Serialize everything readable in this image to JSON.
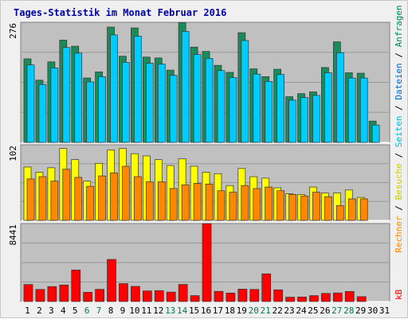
{
  "chart_data": {
    "type": "bar",
    "title": "Tages-Statistik im Monat Februar 2016",
    "x": [
      1,
      2,
      3,
      4,
      5,
      6,
      7,
      8,
      9,
      10,
      11,
      12,
      13,
      14,
      15,
      16,
      17,
      18,
      19,
      20,
      21,
      22,
      23,
      24,
      25,
      26,
      27,
      28,
      29,
      30,
      31
    ],
    "weekend_days": [
      6,
      7,
      13,
      14,
      20,
      21,
      27,
      28
    ],
    "panels": [
      {
        "id": "top",
        "ymax": 276,
        "ytick": "276",
        "series": [
          {
            "name": "Anfragen",
            "color": "#1a8c5a",
            "values": [
              192,
              143,
              185,
              235,
              221,
              148,
              162,
              265,
              198,
              263,
              196,
              194,
              166,
              275,
              219,
              209,
              177,
              161,
              252,
              169,
              151,
              168,
              105,
              112,
              116,
              172,
              231,
              160,
              159,
              49,
              null
            ]
          },
          {
            "name": "Dateien",
            "color": "#00ccff",
            "values": [
              178,
              133,
              171,
              218,
              205,
              139,
              151,
              247,
              184,
              244,
              182,
              180,
              154,
              255,
              202,
              193,
              165,
              149,
              234,
              157,
              140,
              156,
              97,
              103,
              108,
              160,
              206,
              148,
              148,
              40,
              null
            ]
          }
        ]
      },
      {
        "id": "middle",
        "ymax": 102,
        "ytick": "102",
        "series": [
          {
            "name": "Seiten",
            "color": "#ffff00",
            "values": [
              72,
              65,
              71,
              97,
              82,
              53,
              77,
              95,
              97,
              90,
              87,
              82,
              74,
              83,
              73,
              65,
              63,
              47,
              70,
              59,
              57,
              44,
              36,
              35,
              45,
              37,
              37,
              41,
              31,
              null,
              null
            ]
          },
          {
            "name": "Besuche",
            "color": "#ff8800",
            "values": [
              56,
              59,
              53,
              69,
              58,
              46,
              60,
              64,
              73,
              59,
              52,
              52,
              43,
              48,
              50,
              49,
              40,
              38,
              47,
              43,
              45,
              40,
              35,
              33,
              38,
              32,
              20,
              29,
              29,
              null,
              null
            ]
          }
        ]
      },
      {
        "id": "bottom",
        "ymax": 8441,
        "ytick": "8441",
        "series": [
          {
            "name": "kB",
            "color": "#ff0000",
            "values": [
              1840,
              1310,
              1620,
              1790,
              3410,
              1000,
              1320,
              4560,
              1940,
              1640,
              1150,
              1180,
              1020,
              1850,
              640,
              8441,
              1100,
              920,
              1340,
              1310,
              3000,
              1270,
              470,
              490,
              640,
              880,
              930,
              1090,
              530,
              null,
              null
            ]
          }
        ]
      }
    ],
    "right_labels": [
      {
        "text": "kB",
        "color": "#ff0000"
      },
      {
        "text": "Rechner",
        "color": "#ff8800"
      },
      {
        "text": " / ",
        "color": "#000000"
      },
      {
        "text": "Besuche",
        "color": "#cccc00"
      },
      {
        "text": " / ",
        "color": "#000000"
      },
      {
        "text": "Seiten",
        "color": "#00bbdd"
      },
      {
        "text": " / ",
        "color": "#000000"
      },
      {
        "text": "Dateien",
        "color": "#0066cc"
      },
      {
        "text": " / ",
        "color": "#000000"
      },
      {
        "text": "Anfragen",
        "color": "#008855"
      }
    ],
    "colors": {
      "title": "#0000aa",
      "weekday_label": "#000000",
      "weekend_label": "#007a4d",
      "panel_bg": "#c0c0c0",
      "grid": "#999999"
    }
  }
}
